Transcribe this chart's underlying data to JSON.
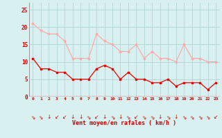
{
  "hours": [
    0,
    1,
    2,
    3,
    4,
    5,
    6,
    7,
    8,
    9,
    10,
    11,
    12,
    13,
    14,
    15,
    16,
    17,
    18,
    19,
    20,
    21,
    22,
    23
  ],
  "vent_moyen": [
    11,
    8,
    8,
    7,
    7,
    5,
    5,
    5,
    8,
    9,
    8,
    5,
    7,
    5,
    5,
    4,
    4,
    5,
    3,
    4,
    4,
    4,
    2,
    4
  ],
  "en_rafales": [
    21,
    19,
    18,
    18,
    16,
    11,
    11,
    11,
    18,
    16,
    15,
    13,
    13,
    15,
    11,
    13,
    11,
    11,
    10,
    15,
    11,
    11,
    10,
    10
  ],
  "background_color": "#d8f0f0",
  "grid_color": "#b0d4d4",
  "line_color_moyen": "#ee0000",
  "line_color_rafales": "#ffaaaa",
  "xlabel": "Vent moyen/en rafales ( km/h )",
  "ylim": [
    0,
    27
  ],
  "yticks": [
    0,
    5,
    10,
    15,
    20,
    25
  ],
  "arrow_chars": [
    "⇘",
    "⇘",
    "↓",
    "↙",
    "↙",
    "↓",
    "↓",
    "⇘",
    "↙",
    "↓",
    "⇘",
    "↓",
    "⇘",
    "↙",
    "⇘",
    "⇘",
    "↓",
    "⇘",
    "↓",
    "⇘",
    "⇘",
    "⇘",
    "⇘",
    "↙"
  ]
}
